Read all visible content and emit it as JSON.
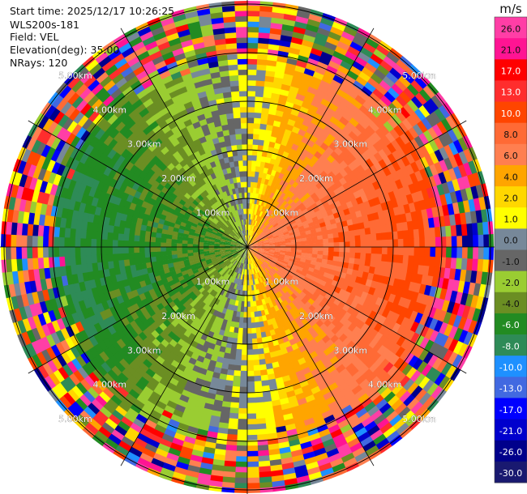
{
  "header": {
    "start_time": "Start time: 2025/12/17 10:26:25",
    "instrument": "WLS200s-181",
    "field": "Field: VEL",
    "elevation": "Elevation(deg): 35.00",
    "nrays": "NRays: 120"
  },
  "chart_data": {
    "type": "heatmap",
    "projection": "polar-ppi",
    "field": "VEL",
    "units": "m/s",
    "n_rays": 120,
    "elevation_deg": 35.0,
    "max_range_km": 5.2,
    "range_rings_km": [
      1.0,
      2.0,
      3.0,
      4.0,
      5.0
    ],
    "range_ring_labels": [
      "1.00km",
      "2.00km",
      "3.00km",
      "4.00km",
      "5.00km"
    ],
    "spokes_deg": [
      0,
      30,
      60,
      90,
      120,
      150,
      180,
      210,
      240,
      270,
      300,
      330
    ],
    "velocity_pattern": {
      "note": "approaching velocities to the west (blue/green), receding to the east (yellow/orange/red); noisy outer range",
      "approx_max_abs_ms": 10.0,
      "noise_beyond_km": 3.7
    },
    "colorbar": {
      "title": "m/s",
      "tick_labels": [
        "26.0",
        "21.0",
        "17.0",
        "13.0",
        "10.0",
        "8.0",
        "6.0",
        "4.0",
        "2.0",
        "1.0",
        "0.0",
        "-1.0",
        "-2.0",
        "-4.0",
        "-6.0",
        "-8.0",
        "-10.0",
        "-13.0",
        "-17.0",
        "-21.0",
        "-26.0",
        "-30.0"
      ],
      "colors": [
        "#ff3ea6",
        "#ff1493",
        "#ff0000",
        "#ff2d2d",
        "#ff4500",
        "#ff6a35",
        "#ff7f50",
        "#ffa500",
        "#ffd700",
        "#ffff00",
        "#778899",
        "#666666",
        "#9acd32",
        "#6b8e23",
        "#228b22",
        "#2e8b57",
        "#1e90ff",
        "#4169e1",
        "#0000ff",
        "#0000cd",
        "#00008b",
        "#191970"
      ]
    }
  }
}
